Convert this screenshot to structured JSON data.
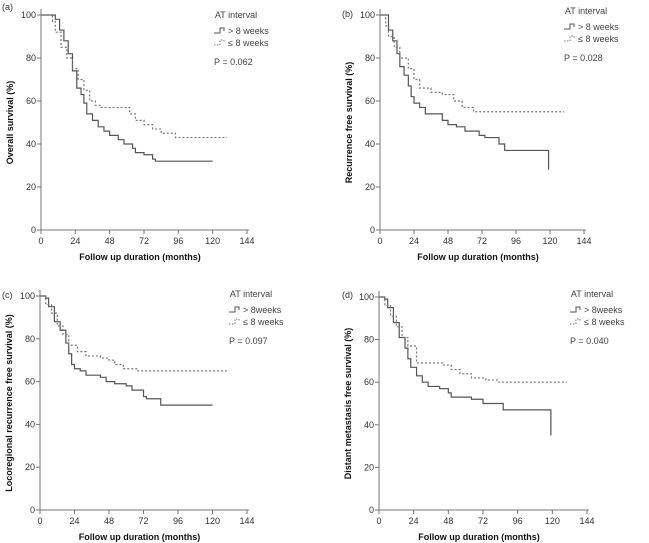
{
  "chart_data": [
    {
      "type": "line",
      "panel_label": "(a)",
      "ylabel": "Overall survival (%)",
      "xlabel": "Follow up duration (months)",
      "xlim": [
        0,
        144
      ],
      "ylim": [
        0,
        100
      ],
      "xticks": [
        0,
        24,
        48,
        72,
        96,
        120,
        144
      ],
      "yticks": [
        0,
        20,
        40,
        60,
        80,
        100
      ],
      "legend_title": "AT interval",
      "legend_placement": "top-right",
      "p_value": "P = 0.062",
      "series": [
        {
          "name": "> 8 weeks",
          "style": "solid",
          "color": "#555555",
          "points": [
            [
              0,
              100
            ],
            [
              6,
              100
            ],
            [
              10,
              98
            ],
            [
              13,
              93
            ],
            [
              16,
              88
            ],
            [
              19,
              82
            ],
            [
              22,
              74
            ],
            [
              25,
              66
            ],
            [
              28,
              63
            ],
            [
              30,
              59
            ],
            [
              32,
              54
            ],
            [
              36,
              51
            ],
            [
              40,
              48
            ],
            [
              44,
              46
            ],
            [
              48,
              44
            ],
            [
              54,
              42
            ],
            [
              58,
              40
            ],
            [
              64,
              38
            ],
            [
              66,
              36
            ],
            [
              72,
              35
            ],
            [
              78,
              33
            ],
            [
              80,
              32
            ],
            [
              120,
              32
            ]
          ]
        },
        {
          "name": "≤ 8 weeks",
          "style": "dotted",
          "color": "#777777",
          "points": [
            [
              0,
              100
            ],
            [
              8,
              97
            ],
            [
              10,
              92
            ],
            [
              14,
              85
            ],
            [
              18,
              80
            ],
            [
              22,
              75
            ],
            [
              26,
              70
            ],
            [
              30,
              65
            ],
            [
              34,
              60
            ],
            [
              38,
              58
            ],
            [
              42,
              57
            ],
            [
              56,
              57
            ],
            [
              62,
              54
            ],
            [
              66,
              51
            ],
            [
              72,
              49
            ],
            [
              78,
              47
            ],
            [
              84,
              45
            ],
            [
              94,
              43
            ],
            [
              130,
              43
            ]
          ]
        }
      ]
    },
    {
      "type": "line",
      "panel_label": "(b)",
      "ylabel": "Recurrence free survival (%)",
      "xlabel": "Follow up duration (months)",
      "xlim": [
        0,
        144
      ],
      "ylim": [
        0,
        100
      ],
      "xticks": [
        0,
        24,
        48,
        72,
        96,
        120,
        144
      ],
      "yticks": [
        0,
        20,
        40,
        60,
        80,
        100
      ],
      "legend_title": "AT interval",
      "legend_placement": "top-right",
      "p_value": "P = 0.028",
      "series": [
        {
          "name": "> 8 weeks",
          "style": "solid",
          "color": "#555555",
          "points": [
            [
              0,
              100
            ],
            [
              4,
              100
            ],
            [
              6,
              93
            ],
            [
              9,
              88
            ],
            [
              12,
              82
            ],
            [
              14,
              76
            ],
            [
              17,
              72
            ],
            [
              20,
              67
            ],
            [
              22,
              62
            ],
            [
              24,
              59
            ],
            [
              28,
              57
            ],
            [
              32,
              54
            ],
            [
              40,
              54
            ],
            [
              44,
              51
            ],
            [
              48,
              49
            ],
            [
              54,
              48
            ],
            [
              60,
              46
            ],
            [
              70,
              44
            ],
            [
              74,
              43
            ],
            [
              84,
              40
            ],
            [
              88,
              37
            ],
            [
              118,
              37
            ],
            [
              119,
              28
            ]
          ]
        },
        {
          "name": "≤ 8 weeks",
          "style": "dotted",
          "color": "#777777",
          "points": [
            [
              0,
              100
            ],
            [
              4,
              95
            ],
            [
              6,
              90
            ],
            [
              10,
              85
            ],
            [
              14,
              80
            ],
            [
              20,
              75
            ],
            [
              24,
              70
            ],
            [
              28,
              66
            ],
            [
              36,
              64
            ],
            [
              44,
              63
            ],
            [
              48,
              63
            ],
            [
              52,
              60
            ],
            [
              58,
              57
            ],
            [
              66,
              55
            ],
            [
              130,
              55
            ]
          ]
        }
      ]
    },
    {
      "type": "line",
      "panel_label": "(c)",
      "ylabel": "Locoregional recurrence free survival (%)",
      "xlabel": "Follow up duration (months)",
      "xlim": [
        0,
        144
      ],
      "ylim": [
        0,
        100
      ],
      "xticks": [
        0,
        24,
        48,
        72,
        96,
        120,
        144
      ],
      "yticks": [
        0,
        20,
        40,
        60,
        80,
        100
      ],
      "legend_title": "AT interval",
      "legend_placement": "top-right",
      "p_value": "P = 0.097",
      "series": [
        {
          "name": "> 8weeks",
          "style": "solid",
          "color": "#555555",
          "points": [
            [
              0,
              100
            ],
            [
              4,
              99
            ],
            [
              6,
              95
            ],
            [
              10,
              88
            ],
            [
              14,
              84
            ],
            [
              18,
              78
            ],
            [
              20,
              73
            ],
            [
              22,
              68
            ],
            [
              24,
              66
            ],
            [
              28,
              65
            ],
            [
              32,
              63
            ],
            [
              42,
              62
            ],
            [
              46,
              60
            ],
            [
              52,
              59
            ],
            [
              60,
              58
            ],
            [
              64,
              56
            ],
            [
              72,
              53
            ],
            [
              74,
              52
            ],
            [
              84,
              49
            ],
            [
              120,
              49
            ]
          ]
        },
        {
          "name": "≤ 8 weeks",
          "style": "dotted",
          "color": "#777777",
          "points": [
            [
              0,
              100
            ],
            [
              4,
              96
            ],
            [
              8,
              92
            ],
            [
              12,
              86
            ],
            [
              16,
              82
            ],
            [
              20,
              77
            ],
            [
              26,
              74
            ],
            [
              32,
              72
            ],
            [
              42,
              71
            ],
            [
              48,
              70
            ],
            [
              52,
              68
            ],
            [
              58,
              66
            ],
            [
              68,
              65
            ],
            [
              130,
              65
            ]
          ]
        }
      ]
    },
    {
      "type": "line",
      "panel_label": "(d)",
      "ylabel": "Distant metastasis free survival (%)",
      "xlabel": "Follow up duration (months)",
      "xlim": [
        0,
        144
      ],
      "ylim": [
        0,
        100
      ],
      "xticks": [
        0,
        24,
        48,
        72,
        96,
        120,
        144
      ],
      "yticks": [
        0,
        20,
        40,
        60,
        80,
        100
      ],
      "legend_title": "AT interval",
      "legend_placement": "top-right",
      "p_value": "P = 0.040",
      "series": [
        {
          "name": "> 8weeks",
          "style": "solid",
          "color": "#555555",
          "points": [
            [
              0,
              100
            ],
            [
              4,
              99
            ],
            [
              6,
              95
            ],
            [
              10,
              88
            ],
            [
              14,
              81
            ],
            [
              18,
              76
            ],
            [
              20,
              71
            ],
            [
              22,
              67
            ],
            [
              26,
              63
            ],
            [
              30,
              60
            ],
            [
              34,
              58
            ],
            [
              42,
              57
            ],
            [
              48,
              55
            ],
            [
              50,
              53
            ],
            [
              60,
              53
            ],
            [
              64,
              52
            ],
            [
              72,
              50
            ],
            [
              86,
              47
            ],
            [
              118,
              47
            ],
            [
              119,
              35
            ]
          ]
        },
        {
          "name": "≤ 8 weeks",
          "style": "dotted",
          "color": "#777777",
          "points": [
            [
              0,
              100
            ],
            [
              4,
              96
            ],
            [
              8,
              91
            ],
            [
              12,
              86
            ],
            [
              16,
              81
            ],
            [
              20,
              77
            ],
            [
              26,
              69
            ],
            [
              36,
              69
            ],
            [
              44,
              68
            ],
            [
              50,
              66
            ],
            [
              56,
              64
            ],
            [
              64,
              62
            ],
            [
              74,
              61
            ],
            [
              82,
              60
            ],
            [
              130,
              60
            ]
          ]
        }
      ]
    }
  ]
}
